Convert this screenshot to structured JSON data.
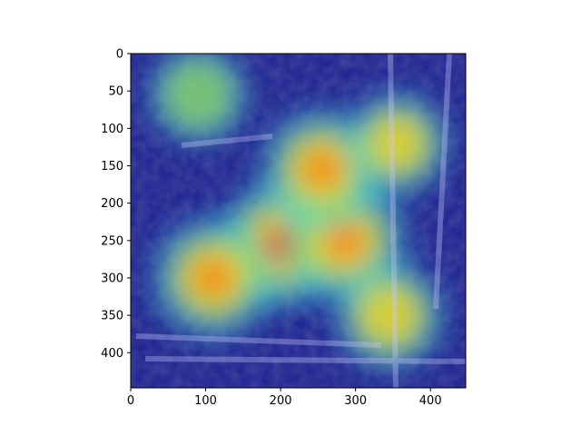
{
  "chart_data": {
    "type": "heatmap",
    "title": "",
    "xlabel": "",
    "ylabel": "",
    "xlim": [
      0,
      447
    ],
    "ylim": [
      447,
      0
    ],
    "x_ticks": [
      0,
      100,
      200,
      300,
      400
    ],
    "y_ticks": [
      0,
      50,
      100,
      150,
      200,
      250,
      300,
      350,
      400
    ],
    "x_tick_labels": [
      "0",
      "100",
      "200",
      "300",
      "400"
    ],
    "y_tick_labels": [
      "0",
      "50",
      "100",
      "150",
      "200",
      "250",
      "300",
      "350",
      "400"
    ],
    "colormap": "jet",
    "overlay": "attention heatmap over photo",
    "grid": false,
    "hotspots": [
      {
        "x": 200,
        "y": 255,
        "intensity": 1.0
      },
      {
        "x": 285,
        "y": 250,
        "intensity": 0.9
      },
      {
        "x": 255,
        "y": 155,
        "intensity": 0.85
      },
      {
        "x": 110,
        "y": 300,
        "intensity": 0.85
      },
      {
        "x": 345,
        "y": 350,
        "intensity": 0.6
      },
      {
        "x": 90,
        "y": 55,
        "intensity": 0.4
      },
      {
        "x": 355,
        "y": 120,
        "intensity": 0.5
      }
    ]
  }
}
